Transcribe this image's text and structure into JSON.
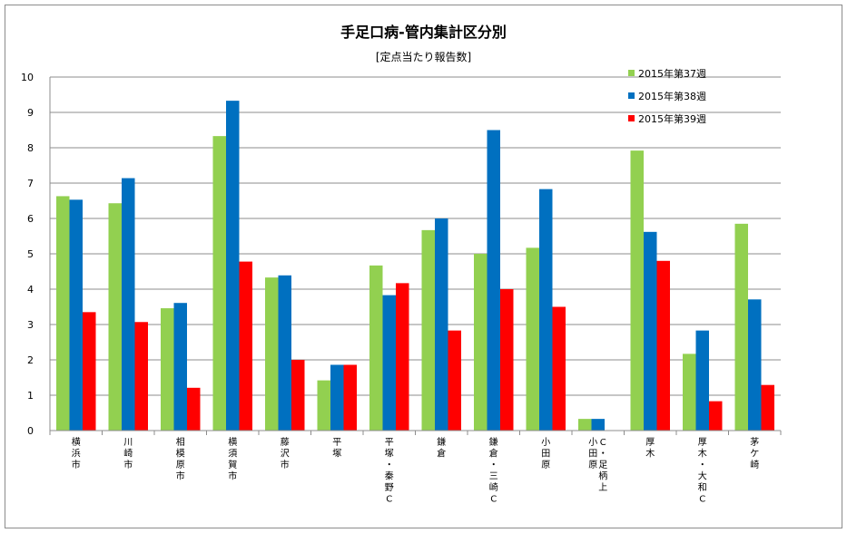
{
  "chart_data": {
    "type": "bar",
    "title": "手足口病-管内集計区分別",
    "subtitle": "[定点当たり報告数]",
    "categories": [
      "横浜市",
      "川崎市",
      "相模原市",
      "横須賀市",
      "藤沢市",
      "平塚",
      "平塚・秦野C",
      "鎌倉",
      "鎌倉・三崎C",
      "小田原",
      "小田原C・足柄上",
      "厚木",
      "厚木・大和C",
      "茅ケ崎"
    ],
    "series": [
      {
        "name": "2015年第37週",
        "color": "#92d050",
        "values": [
          6.63,
          6.43,
          3.46,
          8.33,
          4.33,
          1.42,
          4.67,
          5.67,
          5.0,
          5.17,
          0.33,
          7.92,
          2.17,
          5.85
        ]
      },
      {
        "name": "2015年第38週",
        "color": "#0070c0",
        "values": [
          6.53,
          7.14,
          3.61,
          9.33,
          4.39,
          1.86,
          3.83,
          6.0,
          8.5,
          6.83,
          0.33,
          5.62,
          2.83,
          3.71
        ]
      },
      {
        "name": "2015年第39週",
        "color": "#ff0000",
        "values": [
          3.35,
          3.07,
          1.21,
          4.78,
          2.0,
          1.86,
          4.17,
          2.83,
          4.0,
          3.5,
          0,
          4.8,
          0.83,
          1.29
        ]
      }
    ],
    "ylim": [
      0,
      10
    ],
    "yticks": [
      0,
      1,
      2,
      3,
      4,
      5,
      6,
      7,
      8,
      9,
      10
    ],
    "grid": true,
    "legend_position": "top-right"
  }
}
